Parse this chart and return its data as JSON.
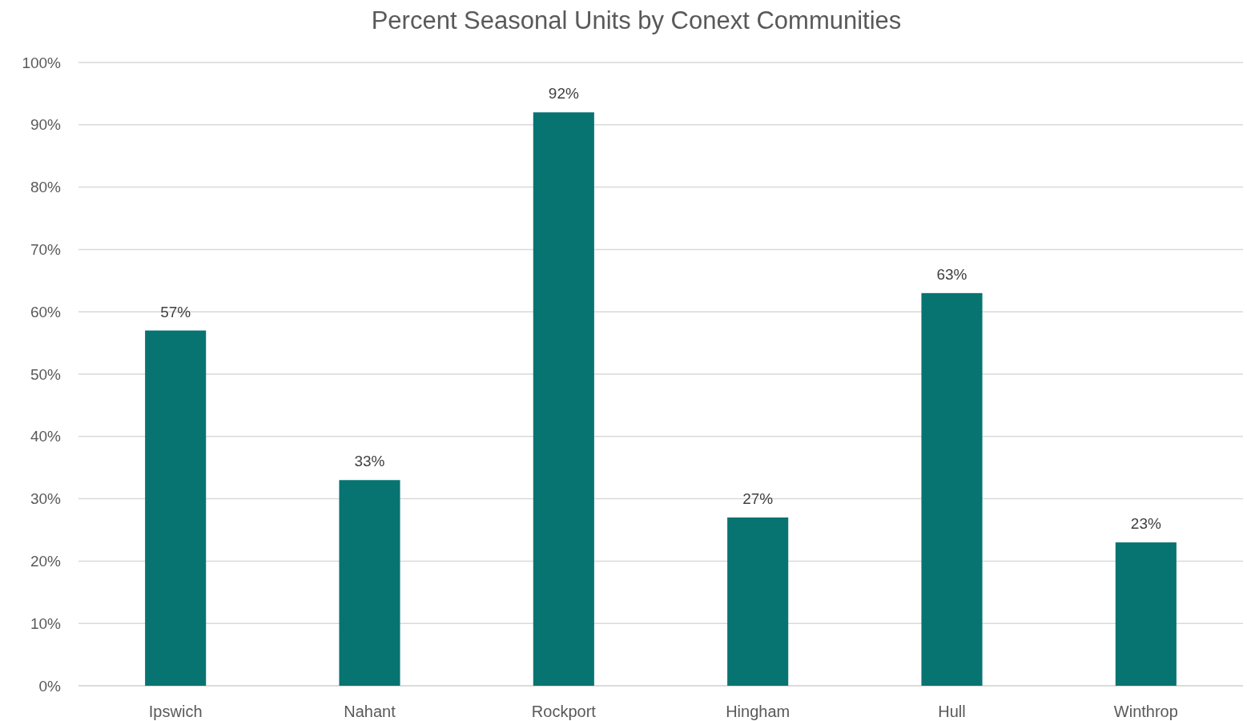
{
  "chart_data": {
    "type": "bar",
    "title": "Percent Seasonal Units by Conext Communities",
    "categories": [
      "Ipswich",
      "Nahant",
      "Rockport",
      "Hingham",
      "Hull",
      "Winthrop"
    ],
    "values": [
      57,
      33,
      92,
      27,
      63,
      23
    ],
    "color": "#077472",
    "value_labels": [
      "57%",
      "33%",
      "92%",
      "27%",
      "63%",
      "23%"
    ],
    "ylim": [
      0,
      100
    ],
    "yticks": [
      {
        "value": 0,
        "label": "0%"
      },
      {
        "value": 10,
        "label": "10%"
      },
      {
        "value": 20,
        "label": "20%"
      },
      {
        "value": 30,
        "label": "30%"
      },
      {
        "value": 40,
        "label": "40%"
      },
      {
        "value": 50,
        "label": "50%"
      },
      {
        "value": 60,
        "label": "60%"
      },
      {
        "value": 70,
        "label": "70%"
      },
      {
        "value": 80,
        "label": "80%"
      },
      {
        "value": 90,
        "label": "90%"
      },
      {
        "value": 100,
        "label": "100%"
      }
    ],
    "grid": "y"
  }
}
